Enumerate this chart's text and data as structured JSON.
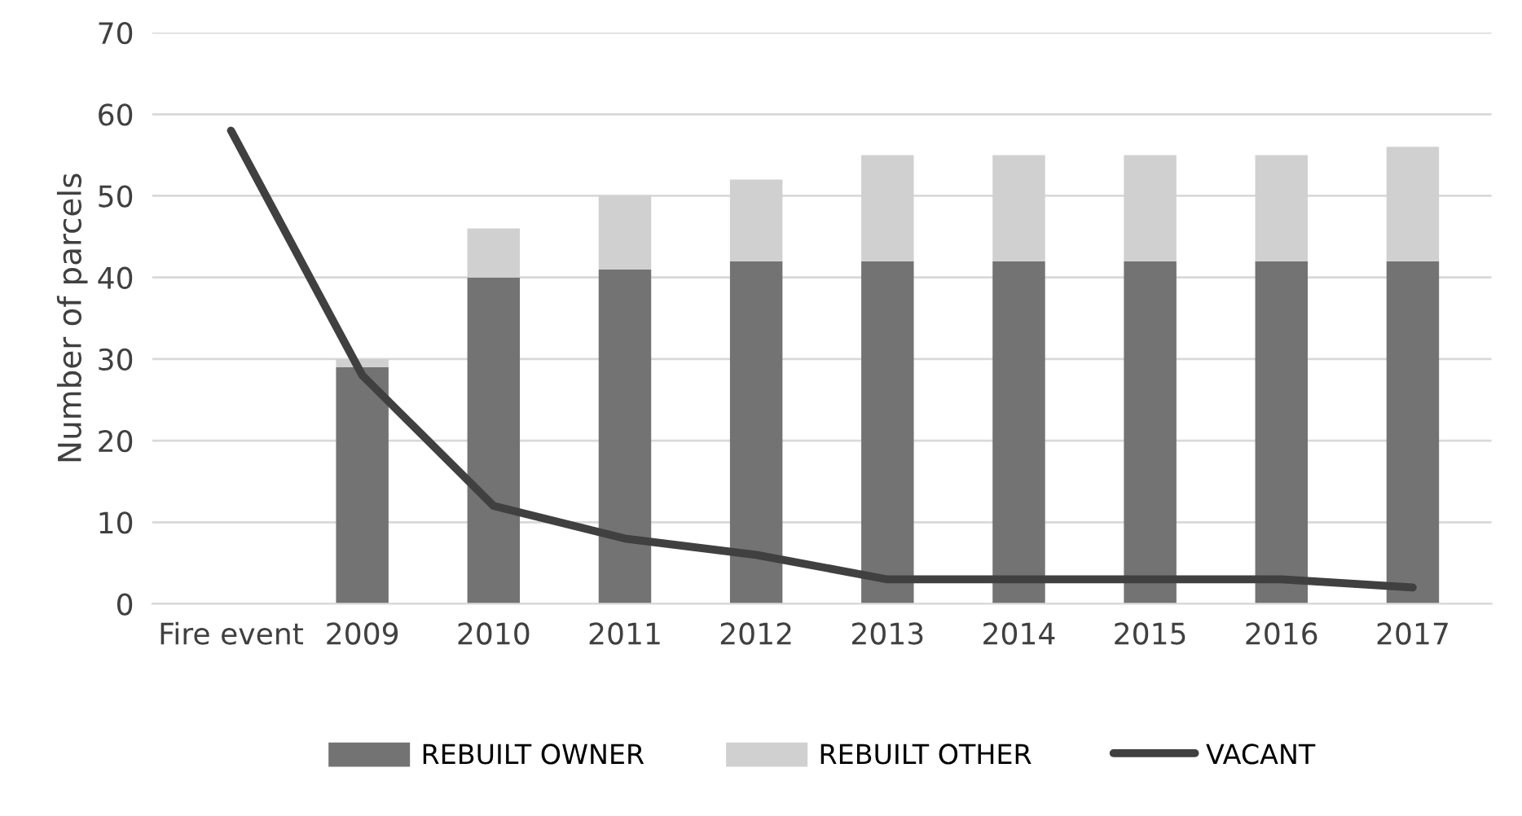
{
  "chart_data": {
    "type": "bar",
    "stacked": true,
    "ylabel": "Number of parcels",
    "categories": [
      "Fire event",
      "2009",
      "2010",
      "2011",
      "2012",
      "2013",
      "2014",
      "2015",
      "2016",
      "2017"
    ],
    "series": [
      {
        "name": "REBUILT OWNER",
        "color": "#737373",
        "values": [
          null,
          29,
          40,
          41,
          42,
          42,
          42,
          42,
          42,
          42
        ]
      },
      {
        "name": "REBUILT OTHER",
        "color": "#d0d0d0",
        "values": [
          null,
          1,
          6,
          9,
          10,
          13,
          13,
          13,
          13,
          14
        ]
      },
      {
        "name": "VACANT",
        "type": "line",
        "color": "#404040",
        "values": [
          58,
          28,
          12,
          8,
          6,
          3,
          3,
          3,
          3,
          2
        ]
      }
    ],
    "ylim": [
      0,
      70
    ],
    "yticks": [
      0,
      10,
      20,
      30,
      40,
      50,
      60,
      70
    ],
    "grid": "y",
    "legend": "bottom",
    "marker": "none",
    "line_style": "solid"
  }
}
